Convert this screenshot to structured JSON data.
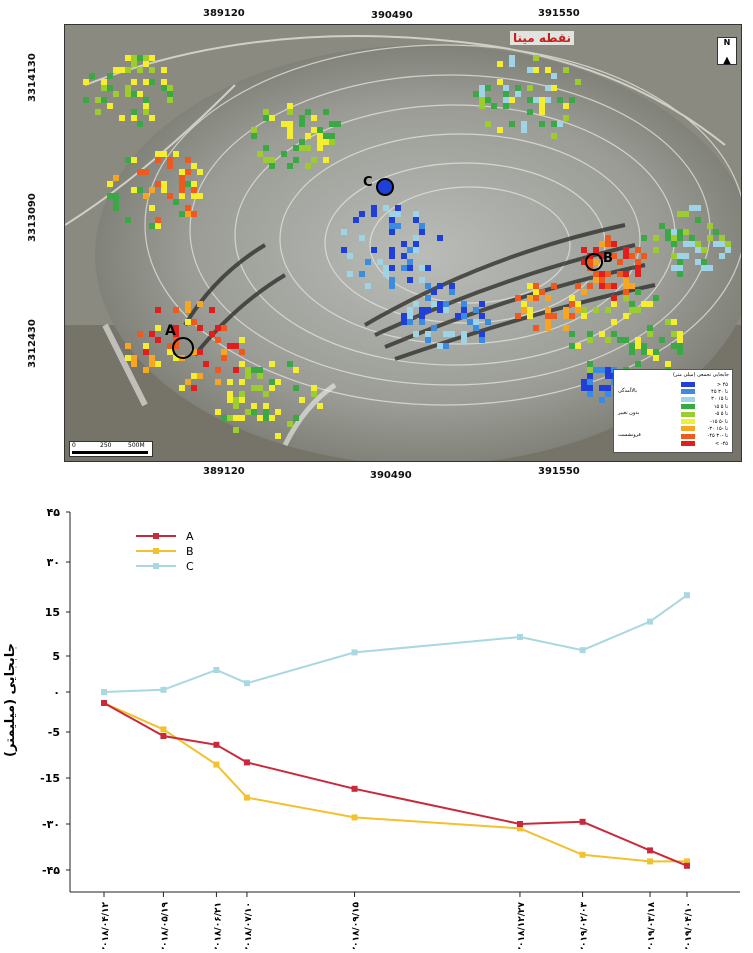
{
  "map": {
    "top_ticks": [
      "389120",
      "390490",
      "391550"
    ],
    "bottom_ticks": [
      "389120",
      "390490",
      "391550"
    ],
    "left_ticks": [
      "3314130",
      "3313090",
      "3312430"
    ],
    "right_ticks": [
      "3314130",
      "3313090",
      "3312430"
    ],
    "place_label": "نقطه مینا",
    "north_label": "N",
    "scale_labels": [
      "0",
      "250",
      "500M"
    ],
    "points": [
      {
        "label": "A"
      },
      {
        "label": "B"
      },
      {
        "label": "C"
      }
    ],
    "legend": {
      "title": "جابجایی تجمعی (میلی متر)",
      "groups": [
        "بالاآمدگی",
        "بدون تغییر",
        "فرونشست"
      ],
      "classes": [
        "> ۴۵",
        "۴۵ تا ۳۰",
        "۳۰ تا ۱۵",
        "۱۵ تا ۵",
        "-۵ تا ۵",
        "-۱۵ تا -۵",
        "-۳۰ تا -۱۵",
        "-۴۵ تا -۳۰",
        "< -۴۵"
      ],
      "class_colors": [
        "#1f3fd6",
        "#3b8ce0",
        "#9fd4e6",
        "#3aa845",
        "#9ccc2e",
        "#f4ee2e",
        "#f6a623",
        "#ee5a1e",
        "#e01e1e"
      ]
    }
  },
  "chart_data": {
    "type": "line",
    "ylabel": "جابجایی (میلیمتر)",
    "y_tick_labels": [
      "۴۵",
      "۳۰",
      "15",
      "5",
      "۰",
      "-5",
      "-15",
      "-۳۰",
      "-۴۵"
    ],
    "x": [
      "۲۰۱۸/۰۴/۱۲",
      "۲۰۱۸/۰۵/۱۹",
      "۲۰۱۸/۰۶/۲۱",
      "۲۰۱۸/۰۷/۱۰",
      "۲۰۱۸/۰۹/۱۵",
      "۲۰۱۸/۱۲/۲۷",
      "۲۰۱۹/۰۲/۰۳",
      "۲۰۱۹/۰۳/۱۸",
      "۲۰۱۹/۰۴/۱۰"
    ],
    "x_days": [
      0,
      37,
      70,
      89,
      156,
      259,
      298,
      340,
      363
    ],
    "series": [
      {
        "name": "A",
        "color": "#c82a3b",
        "values": [
          -5,
          -20,
          -24,
          -32,
          -44,
          -60,
          -59,
          -72,
          -79
        ]
      },
      {
        "name": "B",
        "color": "#f2c12e",
        "values": [
          -5,
          -17,
          -33,
          -48,
          -57,
          -62,
          -74,
          -77,
          -77
        ]
      },
      {
        "name": "C",
        "color": "#a9d8e0",
        "values": [
          0,
          1,
          10,
          4,
          18,
          25,
          19,
          32,
          44
        ]
      }
    ],
    "legend_position": "top-left",
    "grid": false
  }
}
